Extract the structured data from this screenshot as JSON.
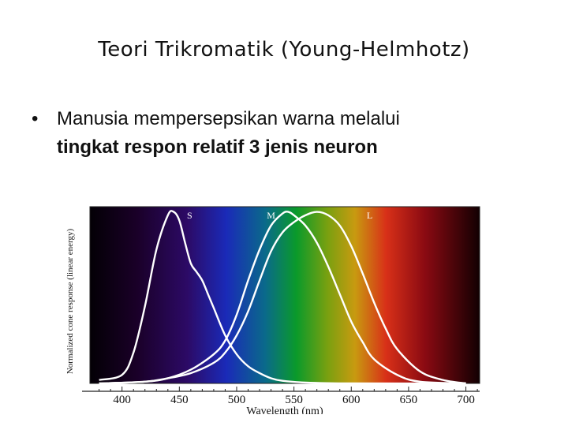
{
  "slide": {
    "title": "Teori Trikromatik (Young-Helmhotz)",
    "bullet_line1": "Manusia mempersepsikan warna melalui",
    "bullet_line2": "tingkat respon relatif 3 jenis neuron"
  },
  "chart_data": {
    "type": "line",
    "title": "",
    "xlabel": "Wavelength (nm)",
    "ylabel": "Normalized cone response (linear energy)",
    "xlim": [
      372,
      712
    ],
    "ylim": [
      0,
      1.03
    ],
    "xticks": [
      400,
      450,
      500,
      550,
      600,
      650,
      700
    ],
    "background": "visible spectrum gradient (violet to red)",
    "series": [
      {
        "name": "S",
        "color": "#ffffff",
        "x": [
          380,
          400,
          410,
          420,
          430,
          440,
          445,
          450,
          455,
          460,
          465,
          470,
          475,
          480,
          490,
          500,
          510,
          520,
          530,
          540,
          560,
          600,
          700
        ],
        "y": [
          0.02,
          0.05,
          0.18,
          0.45,
          0.78,
          0.98,
          1.0,
          0.95,
          0.82,
          0.7,
          0.65,
          0.6,
          0.52,
          0.44,
          0.28,
          0.17,
          0.1,
          0.06,
          0.03,
          0.015,
          0.005,
          0.0,
          0.0
        ]
      },
      {
        "name": "M",
        "color": "#ffffff",
        "x": [
          380,
          420,
          440,
          460,
          480,
          490,
          500,
          510,
          520,
          530,
          540,
          545,
          550,
          560,
          570,
          580,
          590,
          600,
          610,
          620,
          640,
          660,
          700
        ],
        "y": [
          0.0,
          0.01,
          0.03,
          0.08,
          0.17,
          0.25,
          0.4,
          0.6,
          0.78,
          0.92,
          0.99,
          1.0,
          0.98,
          0.92,
          0.82,
          0.68,
          0.52,
          0.36,
          0.24,
          0.14,
          0.05,
          0.01,
          0.0
        ]
      },
      {
        "name": "L",
        "color": "#ffffff",
        "x": [
          380,
          420,
          440,
          460,
          480,
          490,
          500,
          510,
          520,
          530,
          540,
          550,
          560,
          570,
          580,
          590,
          600,
          610,
          620,
          630,
          640,
          660,
          680,
          700
        ],
        "y": [
          0.0,
          0.01,
          0.03,
          0.06,
          0.12,
          0.18,
          0.28,
          0.42,
          0.6,
          0.77,
          0.88,
          0.94,
          0.98,
          1.0,
          0.98,
          0.92,
          0.8,
          0.64,
          0.47,
          0.32,
          0.2,
          0.07,
          0.02,
          0.0
        ]
      }
    ],
    "series_labels": [
      {
        "text": "S",
        "x": 459,
        "y": 0.96
      },
      {
        "text": "M",
        "x": 530,
        "y": 0.96
      },
      {
        "text": "L",
        "x": 616,
        "y": 0.96
      }
    ]
  }
}
